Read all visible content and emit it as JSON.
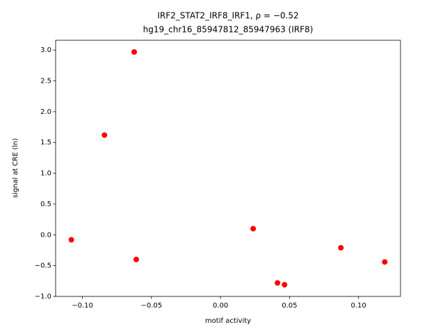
{
  "chart_data": {
    "type": "scatter",
    "title": [
      "IRF2_STAT2_IRF8_IRF1, ρ = −0.52",
      "hg19_chr16_85947812_85947963 (IRF8)"
    ],
    "x_label": "motif activity",
    "y_label": "signal at CRE (ln)",
    "series": [
      {
        "color": "#ff0000",
        "x": [
          -0.108,
          -0.084,
          -0.0625,
          -0.061,
          0.0237,
          0.0413,
          0.0464,
          0.0872,
          0.119
        ],
        "values": [
          -0.08,
          1.62,
          2.97,
          -0.4,
          0.1,
          -0.78,
          -0.81,
          -0.21,
          -0.44
        ]
      }
    ],
    "xlim": [
      -0.1194,
      0.1304
    ],
    "ylim": [
      -1.0,
      3.16
    ],
    "xticks": [
      {
        "value": -0.1,
        "label": "−0.10"
      },
      {
        "value": -0.05,
        "label": "−0.05"
      },
      {
        "value": 0.0,
        "label": "0.00"
      },
      {
        "value": 0.05,
        "label": "0.05"
      },
      {
        "value": 0.1,
        "label": "0.10"
      }
    ],
    "yticks": [
      {
        "value": -1.0,
        "label": "−1.0"
      },
      {
        "value": -0.5,
        "label": "−0.5"
      },
      {
        "value": 0.0,
        "label": "0.0"
      },
      {
        "value": 0.5,
        "label": "0.5"
      },
      {
        "value": 1.0,
        "label": "1.0"
      },
      {
        "value": 1.5,
        "label": "1.5"
      },
      {
        "value": 2.0,
        "label": "2.0"
      },
      {
        "value": 2.5,
        "label": "2.5"
      },
      {
        "value": 3.0,
        "label": "3.0"
      }
    ],
    "grid": false
  }
}
